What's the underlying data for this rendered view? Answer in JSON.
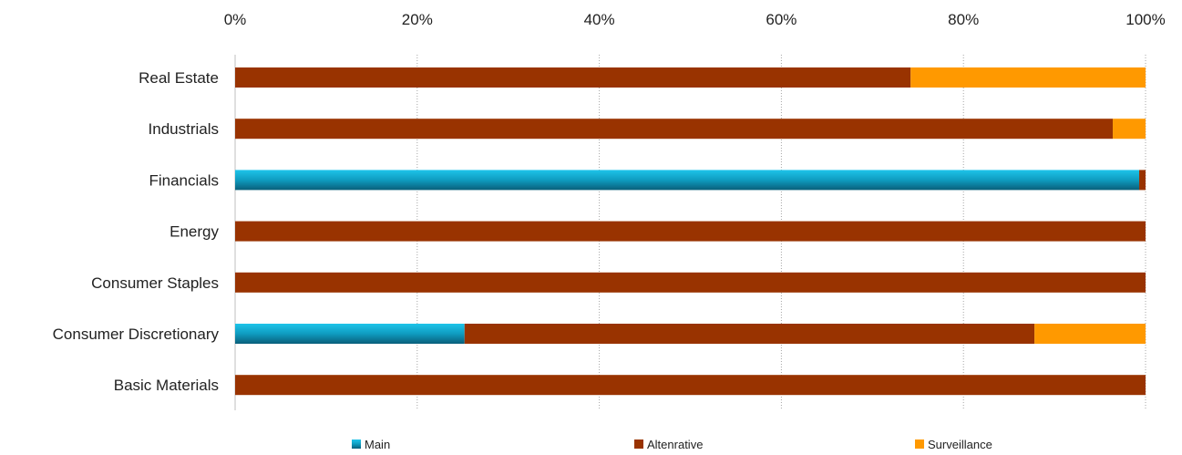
{
  "chart_data": {
    "type": "bar",
    "orientation": "horizontal",
    "stacked": "percent",
    "categories": [
      "Real Estate",
      "Industrials",
      "Financials",
      "Energy",
      "Consumer Staples ",
      "Consumer Discretionary",
      "Basic Materials"
    ],
    "series": [
      {
        "name": "Main",
        "color": "#1BA3C6",
        "values": [
          0,
          0,
          99.3,
          0,
          0,
          25.2,
          0
        ]
      },
      {
        "name": "Altenrative",
        "color": "#993300",
        "values": [
          74.2,
          96.4,
          0.7,
          100,
          100,
          62.6,
          100
        ]
      },
      {
        "name": "Surveillance",
        "color": "#FF9900",
        "values": [
          25.8,
          3.6,
          0,
          0,
          0,
          12.2,
          0
        ]
      }
    ],
    "x_ticks": [
      "0%",
      "20%",
      "40%",
      "60%",
      "80%",
      "100%"
    ],
    "xlim": [
      0,
      100
    ],
    "x_axis_position": "top",
    "grid": true,
    "legend_position": "bottom"
  }
}
